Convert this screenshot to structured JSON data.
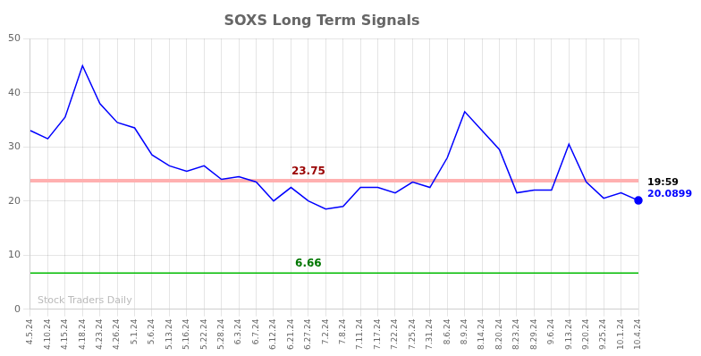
{
  "chart_data": {
    "type": "line",
    "title": "SOXS Long Term Signals",
    "categories": [
      "4.5.24",
      "4.10.24",
      "4.15.24",
      "4.18.24",
      "4.23.24",
      "4.26.24",
      "5.1.24",
      "5.6.24",
      "5.13.24",
      "5.16.24",
      "5.22.24",
      "5.28.24",
      "6.3.24",
      "6.7.24",
      "6.12.24",
      "6.21.24",
      "6.27.24",
      "7.2.24",
      "7.8.24",
      "7.11.24",
      "7.17.24",
      "7.22.24",
      "7.25.24",
      "7.31.24",
      "8.6.24",
      "8.9.24",
      "8.14.24",
      "8.20.24",
      "8.23.24",
      "8.29.24",
      "9.6.24",
      "9.13.24",
      "9.20.24",
      "9.25.24",
      "10.1.24",
      "10.4.24"
    ],
    "values": [
      33.0,
      31.5,
      35.5,
      45.0,
      38.0,
      34.5,
      33.5,
      28.5,
      26.5,
      25.5,
      26.5,
      24.0,
      24.5,
      23.5,
      20.0,
      22.5,
      20.0,
      18.5,
      19.0,
      22.5,
      22.5,
      21.5,
      23.5,
      22.5,
      28.0,
      36.5,
      33.0,
      29.5,
      21.5,
      22.0,
      22.0,
      30.5,
      23.5,
      20.5,
      21.5,
      20.0899
    ],
    "color": "blue",
    "reference_lines": [
      {
        "value": 23.75,
        "color": "#ffb0b0",
        "label": "23.75",
        "label_color": "#990000"
      },
      {
        "value": 6.66,
        "color": "#00bb00",
        "label": "6.66",
        "label_color": "#007700"
      }
    ],
    "annotations": [
      "19:59",
      "20.0899"
    ],
    "watermark": "Stock Traders Daily",
    "ylim": [
      0,
      50
    ],
    "yticks": [
      0,
      10,
      20,
      30,
      40,
      50
    ],
    "grid": true
  }
}
